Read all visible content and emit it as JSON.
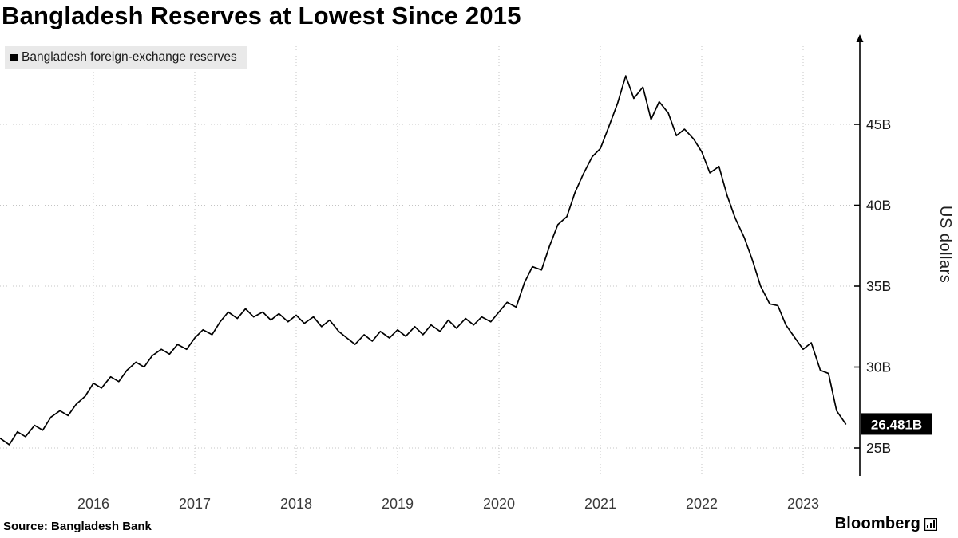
{
  "title": "Bangladesh Reserves at Lowest Since 2015",
  "legend": {
    "label": "Bangladesh foreign-exchange reserves",
    "swatch_color": "#000000"
  },
  "y_axis_title": "US dollars",
  "value_label": "26.481B",
  "source": "Source: Bangladesh Bank",
  "branding": "Bloomberg",
  "colors": {
    "line": "#000000",
    "grid": "#c4c4c4",
    "legend_bg": "#e9e9e9",
    "label_bg": "#000000",
    "label_fg": "#ffffff"
  },
  "chart_data": {
    "type": "line",
    "title": "Bangladesh Reserves at Lowest Since 2015",
    "series_name": "Bangladesh foreign-exchange reserves",
    "xlabel": "",
    "ylabel": "US dollars",
    "unit": "billions of US dollars",
    "legend_position": "top-left",
    "grid": "dotted",
    "x_ticks": [
      2016,
      2017,
      2018,
      2019,
      2020,
      2021,
      2022,
      2023
    ],
    "y_ticks": [
      25,
      30,
      35,
      40,
      45
    ],
    "y_tick_labels": [
      "25B",
      "30B",
      "35B",
      "40B",
      "45B"
    ],
    "xlim": [
      2015.08,
      2023.56
    ],
    "ylim": [
      23.4,
      49.8
    ],
    "last_value": 26.481,
    "points": [
      [
        2015.08,
        25.6
      ],
      [
        2015.17,
        25.2
      ],
      [
        2015.25,
        26.0
      ],
      [
        2015.33,
        25.7
      ],
      [
        2015.42,
        26.4
      ],
      [
        2015.5,
        26.1
      ],
      [
        2015.58,
        26.9
      ],
      [
        2015.67,
        27.3
      ],
      [
        2015.75,
        27.0
      ],
      [
        2015.83,
        27.7
      ],
      [
        2015.92,
        28.2
      ],
      [
        2016,
        29.0
      ],
      [
        2016.08,
        28.7
      ],
      [
        2016.17,
        29.4
      ],
      [
        2016.25,
        29.1
      ],
      [
        2016.33,
        29.8
      ],
      [
        2016.42,
        30.3
      ],
      [
        2016.5,
        30.0
      ],
      [
        2016.58,
        30.7
      ],
      [
        2016.67,
        31.1
      ],
      [
        2016.75,
        30.8
      ],
      [
        2016.83,
        31.4
      ],
      [
        2016.92,
        31.1
      ],
      [
        2017,
        31.8
      ],
      [
        2017.08,
        32.3
      ],
      [
        2017.17,
        32.0
      ],
      [
        2017.25,
        32.8
      ],
      [
        2017.33,
        33.4
      ],
      [
        2017.42,
        33.0
      ],
      [
        2017.5,
        33.6
      ],
      [
        2017.58,
        33.1
      ],
      [
        2017.67,
        33.4
      ],
      [
        2017.75,
        32.9
      ],
      [
        2017.83,
        33.3
      ],
      [
        2017.92,
        32.8
      ],
      [
        2018,
        33.2
      ],
      [
        2018.08,
        32.7
      ],
      [
        2018.17,
        33.1
      ],
      [
        2018.25,
        32.5
      ],
      [
        2018.33,
        32.9
      ],
      [
        2018.42,
        32.2
      ],
      [
        2018.5,
        31.8
      ],
      [
        2018.58,
        31.4
      ],
      [
        2018.67,
        32.0
      ],
      [
        2018.75,
        31.6
      ],
      [
        2018.83,
        32.2
      ],
      [
        2018.92,
        31.8
      ],
      [
        2019,
        32.3
      ],
      [
        2019.08,
        31.9
      ],
      [
        2019.17,
        32.5
      ],
      [
        2019.25,
        32.0
      ],
      [
        2019.33,
        32.6
      ],
      [
        2019.42,
        32.2
      ],
      [
        2019.5,
        32.9
      ],
      [
        2019.58,
        32.4
      ],
      [
        2019.67,
        33.0
      ],
      [
        2019.75,
        32.6
      ],
      [
        2019.83,
        33.1
      ],
      [
        2019.92,
        32.8
      ],
      [
        2020,
        33.4
      ],
      [
        2020.08,
        34.0
      ],
      [
        2020.17,
        33.7
      ],
      [
        2020.25,
        35.2
      ],
      [
        2020.33,
        36.2
      ],
      [
        2020.42,
        36.0
      ],
      [
        2020.5,
        37.5
      ],
      [
        2020.58,
        38.8
      ],
      [
        2020.67,
        39.3
      ],
      [
        2020.75,
        40.8
      ],
      [
        2020.83,
        41.9
      ],
      [
        2020.92,
        43.0
      ],
      [
        2021,
        43.5
      ],
      [
        2021.08,
        44.8
      ],
      [
        2021.17,
        46.3
      ],
      [
        2021.25,
        48.0
      ],
      [
        2021.33,
        46.6
      ],
      [
        2021.42,
        47.3
      ],
      [
        2021.5,
        45.3
      ],
      [
        2021.58,
        46.4
      ],
      [
        2021.67,
        45.7
      ],
      [
        2021.75,
        44.3
      ],
      [
        2021.83,
        44.7
      ],
      [
        2021.92,
        44.1
      ],
      [
        2022,
        43.3
      ],
      [
        2022.08,
        42.0
      ],
      [
        2022.17,
        42.4
      ],
      [
        2022.25,
        40.6
      ],
      [
        2022.33,
        39.2
      ],
      [
        2022.42,
        38.0
      ],
      [
        2022.5,
        36.6
      ],
      [
        2022.58,
        35.0
      ],
      [
        2022.67,
        33.9
      ],
      [
        2022.75,
        33.8
      ],
      [
        2022.83,
        32.6
      ],
      [
        2022.92,
        31.8
      ],
      [
        2023,
        31.1
      ],
      [
        2023.08,
        31.5
      ],
      [
        2023.17,
        29.8
      ],
      [
        2023.25,
        29.6
      ],
      [
        2023.33,
        27.3
      ],
      [
        2023.42,
        26.481
      ]
    ]
  }
}
